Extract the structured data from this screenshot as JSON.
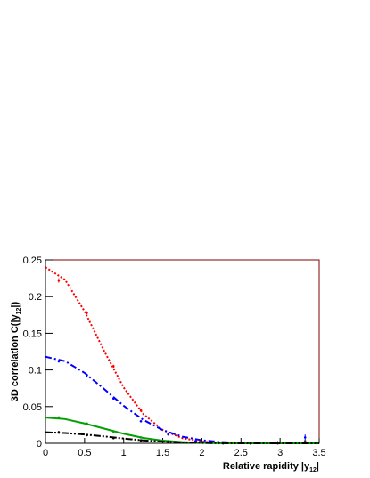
{
  "chart_data": {
    "type": "line",
    "x_label": [
      "Relative rapidity |y",
      "12",
      "|"
    ],
    "y_label": [
      "3D correlation C(|y",
      "12",
      "|)"
    ],
    "xlim": [
      0,
      3.5
    ],
    "ylim": [
      0,
      0.25
    ],
    "xticks": [
      0,
      0.5,
      1,
      1.5,
      2,
      2.5,
      3,
      3.5
    ],
    "yticks": [
      0,
      0.05,
      0.1,
      0.15,
      0.2,
      0.25
    ],
    "series": [
      {
        "color": "#ff0000",
        "dash": "2,2",
        "x": [
          0,
          0.25,
          0.5,
          0.75,
          1,
          1.25,
          1.5,
          1.75,
          2,
          2.25,
          2.5,
          2.75,
          3,
          3.25,
          3.5
        ],
        "values": [
          0.24,
          0.223,
          0.18,
          0.126,
          0.076,
          0.04,
          0.018,
          0.007,
          0.0024,
          0.0007,
          0.0002,
          0,
          0,
          0,
          0
        ]
      },
      {
        "color": "#0000ff",
        "dash": "7,3,2,3",
        "x": [
          0,
          0.25,
          0.5,
          0.75,
          1,
          1.25,
          1.5,
          1.75,
          2,
          2.25,
          2.5,
          2.75,
          3,
          3.25,
          3.5
        ],
        "values": [
          0.118,
          0.112,
          0.096,
          0.074,
          0.051,
          0.032,
          0.018,
          0.009,
          0.0042,
          0.0017,
          0.0006,
          0.0002,
          0,
          0,
          0
        ]
      },
      {
        "color": "#00a000",
        "dash": "none",
        "x": [
          0,
          0.25,
          0.5,
          0.75,
          1,
          1.25,
          1.5,
          1.75,
          2,
          2.25,
          2.5,
          2.75,
          3,
          3.25,
          3.5
        ],
        "values": [
          0.035,
          0.033,
          0.027,
          0.02,
          0.013,
          0.0073,
          0.0037,
          0.0016,
          0.0006,
          0.0002,
          0,
          0,
          0,
          0,
          0
        ]
      },
      {
        "color": "#000000",
        "dash": "8,2,2,2,2,2",
        "x": [
          0,
          0.25,
          0.5,
          0.75,
          1,
          1.25,
          1.5,
          1.75,
          2,
          2.25,
          2.5,
          2.75,
          3,
          3.25,
          3.5
        ],
        "values": [
          0.015,
          0.014,
          0.012,
          0.0094,
          0.0065,
          0.004,
          0.0023,
          0.0012,
          0.0005,
          0.0002,
          0,
          0,
          0,
          0,
          0
        ]
      }
    ],
    "points": [
      {
        "color": "#ff0000",
        "x": [
          0.17,
          0.53,
          0.87,
          1.22,
          1.57,
          1.92,
          2.27,
          2.62,
          2.97,
          3.32
        ],
        "values": [
          0.222,
          0.178,
          0.105,
          0.045,
          0.013,
          0.003,
          0.001,
          0,
          0,
          0.003
        ],
        "errors": [
          0.003,
          0.002,
          0.002,
          0.001,
          0.001,
          0.001,
          0.001,
          0.001,
          0.001,
          0.002
        ]
      },
      {
        "color": "#0000ff",
        "x": [
          0.17,
          0.53,
          0.87,
          1.22,
          1.57,
          1.92,
          2.27,
          2.62,
          2.97,
          3.32
        ],
        "values": [
          0.112,
          0.093,
          0.061,
          0.03,
          0.012,
          0.003,
          0.001,
          0,
          0.001,
          0.008
        ],
        "errors": [
          0.002,
          0.002,
          0.001,
          0.001,
          0.001,
          0.001,
          0.001,
          0.001,
          0.002,
          0.004
        ]
      },
      {
        "color": "#00a000",
        "x": [
          0.17,
          0.53,
          0.87,
          1.22,
          1.57,
          1.92,
          2.27,
          2.62,
          2.97,
          3.32
        ],
        "values": [
          0.035,
          0.027,
          0.016,
          0.008,
          0.003,
          0.001,
          0,
          0,
          0.001,
          0.002
        ],
        "errors": [
          0.002,
          0.001,
          0.001,
          0.001,
          0.001,
          0.001,
          0.001,
          0.001,
          0.001,
          0.002
        ]
      },
      {
        "color": "#000000",
        "x": [
          0.17,
          0.53,
          0.87,
          1.22,
          1.57,
          1.92,
          2.27,
          2.62,
          2.97,
          3.32
        ],
        "values": [
          0.015,
          0.011,
          0.007,
          0.004,
          0.002,
          0.001,
          0,
          0,
          0,
          0.001
        ],
        "errors": [
          0.002,
          0.001,
          0.001,
          0.001,
          0.001,
          0.001,
          0.001,
          0.001,
          0.001,
          0.002
        ]
      }
    ]
  }
}
